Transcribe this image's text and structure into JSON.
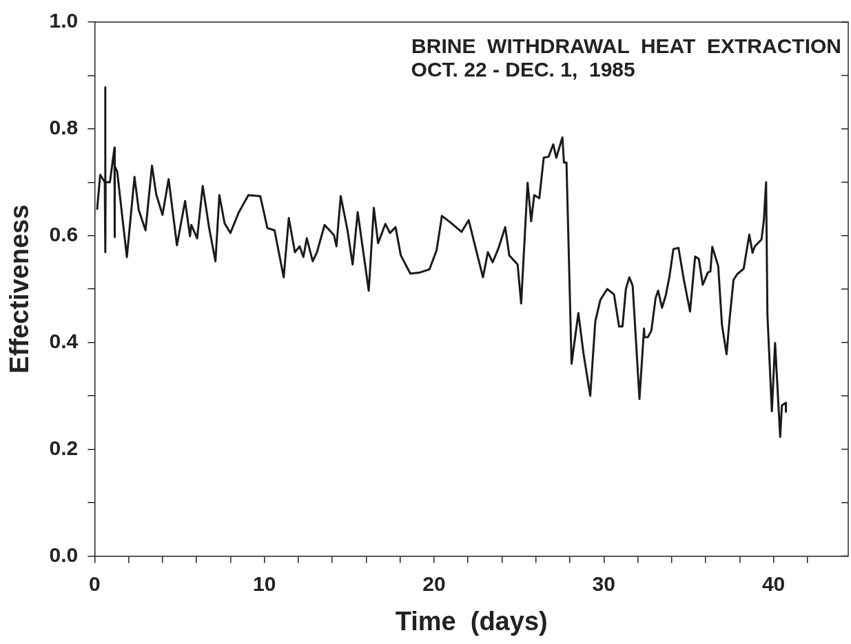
{
  "chart_data": {
    "type": "line",
    "title": "BRINE  WITHDRAWAL  HEAT  EXTRACTION",
    "subtitle": "OCT. 22 - DEC. 1,  1985",
    "xlabel": "Time  (days)",
    "ylabel": "Effectiveness",
    "xlim": [
      0,
      44.4
    ],
    "xticks": [
      0,
      {
        "value": 2,
        "label": null
      },
      {
        "value": 4,
        "label": null
      },
      {
        "value": 6,
        "label": null
      },
      {
        "value": 8,
        "label": null
      },
      10,
      {
        "value": 12,
        "label": null
      },
      {
        "value": 14,
        "label": null
      },
      {
        "value": 16,
        "label": null
      },
      {
        "value": 18,
        "label": null
      },
      20,
      {
        "value": 22,
        "label": null
      },
      {
        "value": 24,
        "label": null
      },
      {
        "value": 26,
        "label": null
      },
      {
        "value": 28,
        "label": null
      },
      30,
      {
        "value": 32,
        "label": null
      },
      {
        "value": 34,
        "label": null
      },
      {
        "value": 36,
        "label": null
      },
      {
        "value": 38,
        "label": null
      },
      40,
      {
        "value": 42,
        "label": null
      }
    ],
    "ylim": [
      0,
      1
    ],
    "yticks": [
      {
        "value": 0,
        "label": "0.0"
      },
      {
        "value": 0.1,
        "label": null
      },
      {
        "value": 0.2,
        "label": "0.2"
      },
      {
        "value": 0.3,
        "label": null
      },
      {
        "value": 0.4,
        "label": "0.4"
      },
      {
        "value": 0.5,
        "label": null
      },
      {
        "value": 0.6,
        "label": "0.6"
      },
      {
        "value": 0.7,
        "label": null
      },
      {
        "value": 0.8,
        "label": "0.8"
      },
      {
        "value": 0.9,
        "label": null
      },
      {
        "value": 1,
        "label": "1.0"
      }
    ],
    "grid": false,
    "legend": false,
    "marker": "none",
    "line_style": "solid",
    "series": [
      {
        "color": "#1a1a1a",
        "x": [
          0.15,
          0.33,
          0.6,
          0.63,
          0.63,
          0.65,
          0.9,
          1.17,
          1.17,
          1.2,
          1.33,
          1.9,
          2.35,
          2.6,
          3.0,
          3.38,
          3.63,
          4.0,
          4.36,
          4.85,
          5.33,
          5.62,
          5.7,
          6.04,
          6.37,
          6.75,
          7.12,
          7.35,
          7.66,
          8.0,
          8.5,
          9.06,
          9.76,
          10.18,
          10.6,
          11.14,
          11.44,
          11.8,
          12.08,
          12.3,
          12.5,
          12.85,
          13.1,
          13.55,
          14.1,
          14.25,
          14.5,
          14.9,
          15.2,
          15.5,
          16.15,
          16.45,
          16.7,
          17.13,
          17.4,
          17.73,
          18.04,
          18.6,
          19.17,
          19.73,
          20.15,
          20.46,
          20.99,
          21.62,
          22.04,
          22.39,
          22.88,
          23.17,
          23.45,
          23.8,
          24.19,
          24.43,
          24.92,
          25.13,
          25.51,
          25.72,
          25.9,
          26.2,
          26.46,
          26.75,
          27.02,
          27.2,
          27.56,
          27.65,
          27.8,
          28.1,
          28.5,
          28.8,
          29.2,
          29.5,
          29.8,
          30.2,
          30.6,
          30.9,
          31.1,
          31.3,
          31.5,
          31.7,
          32.1,
          32.37,
          32.4,
          32.6,
          32.8,
          33.05,
          33.2,
          33.43,
          33.65,
          33.87,
          34.1,
          34.4,
          34.7,
          35.08,
          35.38,
          35.6,
          35.83,
          36.13,
          36.28,
          36.39,
          36.74,
          36.96,
          37.23,
          37.41,
          37.64,
          37.86,
          38.24,
          38.57,
          38.76,
          38.9,
          39.29,
          39.43,
          39.56,
          39.64,
          39.9,
          40.09,
          40.39,
          40.49,
          40.72,
          40.73
        ],
        "values": [
          0.65,
          0.714,
          0.7,
          0.878,
          0.569,
          0.7,
          0.7,
          0.765,
          0.597,
          0.73,
          0.72,
          0.56,
          0.71,
          0.648,
          0.61,
          0.731,
          0.677,
          0.639,
          0.706,
          0.582,
          0.665,
          0.599,
          0.62,
          0.595,
          0.693,
          0.614,
          0.552,
          0.676,
          0.623,
          0.605,
          0.644,
          0.676,
          0.674,
          0.614,
          0.61,
          0.522,
          0.633,
          0.569,
          0.58,
          0.56,
          0.595,
          0.552,
          0.569,
          0.62,
          0.601,
          0.58,
          0.674,
          0.61,
          0.546,
          0.644,
          0.497,
          0.652,
          0.586,
          0.622,
          0.605,
          0.616,
          0.563,
          0.529,
          0.531,
          0.537,
          0.573,
          0.637,
          0.624,
          0.607,
          0.629,
          0.584,
          0.522,
          0.569,
          0.55,
          0.577,
          0.616,
          0.563,
          0.546,
          0.473,
          0.699,
          0.627,
          0.676,
          0.67,
          0.746,
          0.748,
          0.771,
          0.746,
          0.784,
          0.737,
          0.737,
          0.36,
          0.455,
          0.38,
          0.3,
          0.44,
          0.48,
          0.5,
          0.49,
          0.43,
          0.43,
          0.5,
          0.522,
          0.506,
          0.294,
          0.426,
          0.41,
          0.41,
          0.422,
          0.483,
          0.497,
          0.465,
          0.488,
          0.524,
          0.575,
          0.577,
          0.52,
          0.458,
          0.561,
          0.556,
          0.508,
          0.531,
          0.533,
          0.579,
          0.543,
          0.433,
          0.378,
          0.444,
          0.517,
          0.528,
          0.538,
          0.602,
          0.568,
          0.58,
          0.593,
          0.629,
          0.7,
          0.451,
          0.271,
          0.399,
          0.223,
          0.282,
          0.287,
          0.27
        ]
      }
    ]
  }
}
